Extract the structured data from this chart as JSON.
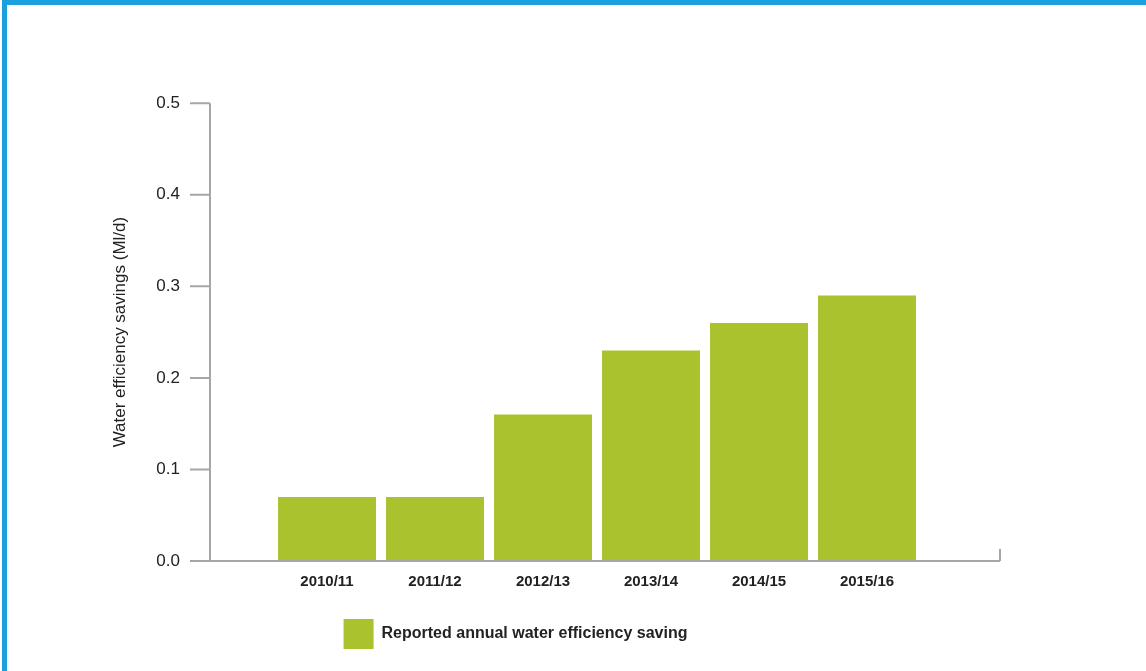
{
  "chart_data": {
    "type": "bar",
    "ylabel": "Water efficiency savings (Ml/d)",
    "categories": [
      "2010/11",
      "2011/12",
      "2012/13",
      "2013/14",
      "2014/15",
      "2015/16"
    ],
    "series": [
      {
        "name": "Reported annual water efficiency saving",
        "color": "#a9c22e",
        "values": [
          0.07,
          0.07,
          0.16,
          0.23,
          0.26,
          0.29
        ]
      }
    ],
    "ylim": [
      0,
      0.5
    ],
    "yticks": [
      {
        "value": 0,
        "label": "0.0"
      },
      0.1,
      0.2,
      0.3,
      0.4,
      0.5
    ],
    "grid": false,
    "legend": "bottom"
  }
}
